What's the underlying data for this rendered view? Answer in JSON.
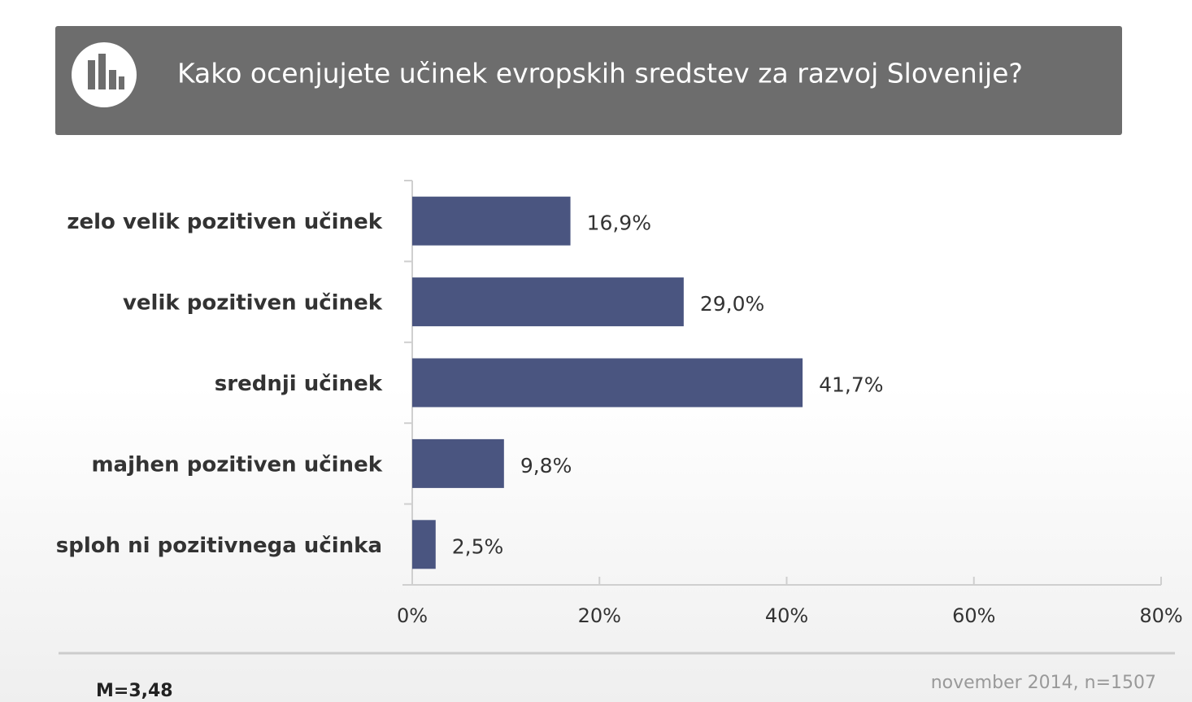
{
  "chart_data": {
    "type": "bar",
    "orientation": "horizontal",
    "title": "Kako ocenjujete učinek evropskih sredstev za razvoj Slovenije?",
    "categories": [
      "zelo velik pozitiven učinek",
      "velik pozitiven učinek",
      "srednji učinek",
      "majhen pozitiven učinek",
      "sploh ni pozitivnega učinka"
    ],
    "values": [
      16.9,
      29.0,
      41.7,
      9.8,
      2.5
    ],
    "value_labels": [
      "16,9%",
      "29,0%",
      "41,7%",
      "9,8%",
      "2,5%"
    ],
    "color": "#4a5580",
    "xlim": [
      0,
      80
    ],
    "xticks": [
      {
        "value": 0,
        "label": "0%"
      },
      {
        "value": 20,
        "label": "20%"
      },
      {
        "value": 40,
        "label": "40%"
      },
      {
        "value": 60,
        "label": "60%"
      },
      {
        "value": 80,
        "label": "80%"
      }
    ],
    "annotations": [
      "M=3,48",
      "november 2014, n=1507"
    ]
  }
}
